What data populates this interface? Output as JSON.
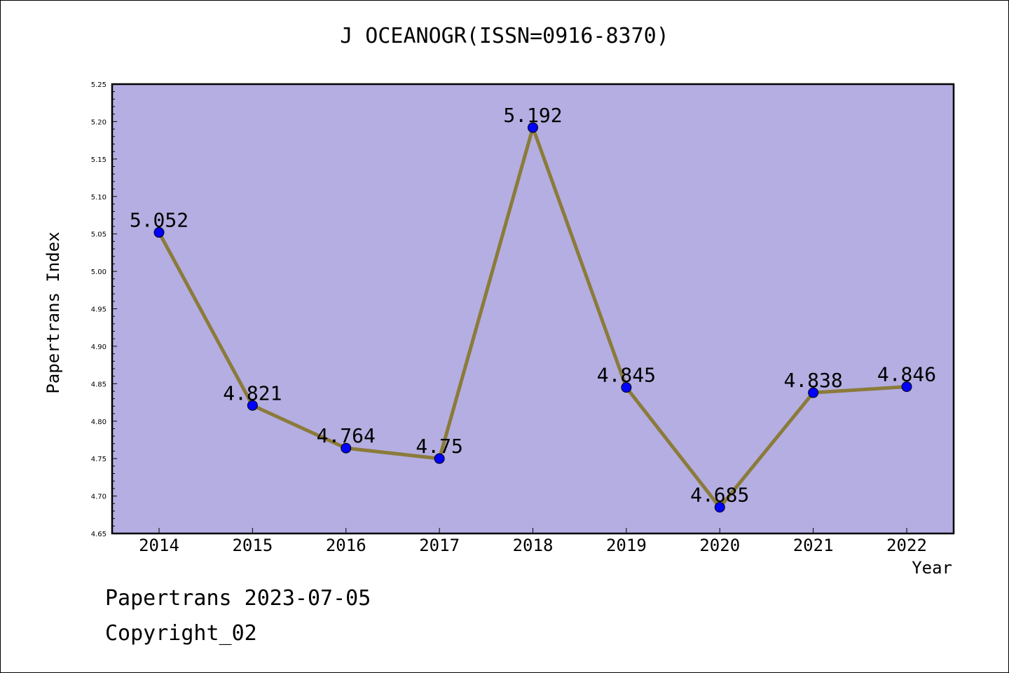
{
  "chart_data": {
    "type": "line",
    "title": "J OCEANOGR(ISSN=0916-8370)",
    "xlabel": "Year",
    "ylabel": "Papertrans Index",
    "categories": [
      "2014",
      "2015",
      "2016",
      "2017",
      "2018",
      "2019",
      "2020",
      "2021",
      "2022"
    ],
    "values": [
      5.052,
      4.821,
      4.764,
      4.75,
      5.192,
      4.845,
      4.685,
      4.838,
      4.846
    ],
    "data_labels": [
      "5.052",
      "4.821",
      "4.764",
      "4.75",
      "5.192",
      "4.845",
      "4.685",
      "4.838",
      "4.846"
    ],
    "ylim": [
      4.65,
      5.25
    ],
    "yticks": [
      "4.65",
      "4.70",
      "4.75",
      "4.80",
      "4.85",
      "4.90",
      "4.95",
      "5.00",
      "5.05",
      "5.10",
      "5.15",
      "5.20",
      "5.25"
    ],
    "grid": false,
    "colors": {
      "plot_bg": "#b4aee2",
      "line": "#8b7b3a",
      "marker": "#0000ff"
    }
  },
  "footer": {
    "date_line": "Papertrans 2023-07-05",
    "copyright": "Copyright_02"
  }
}
